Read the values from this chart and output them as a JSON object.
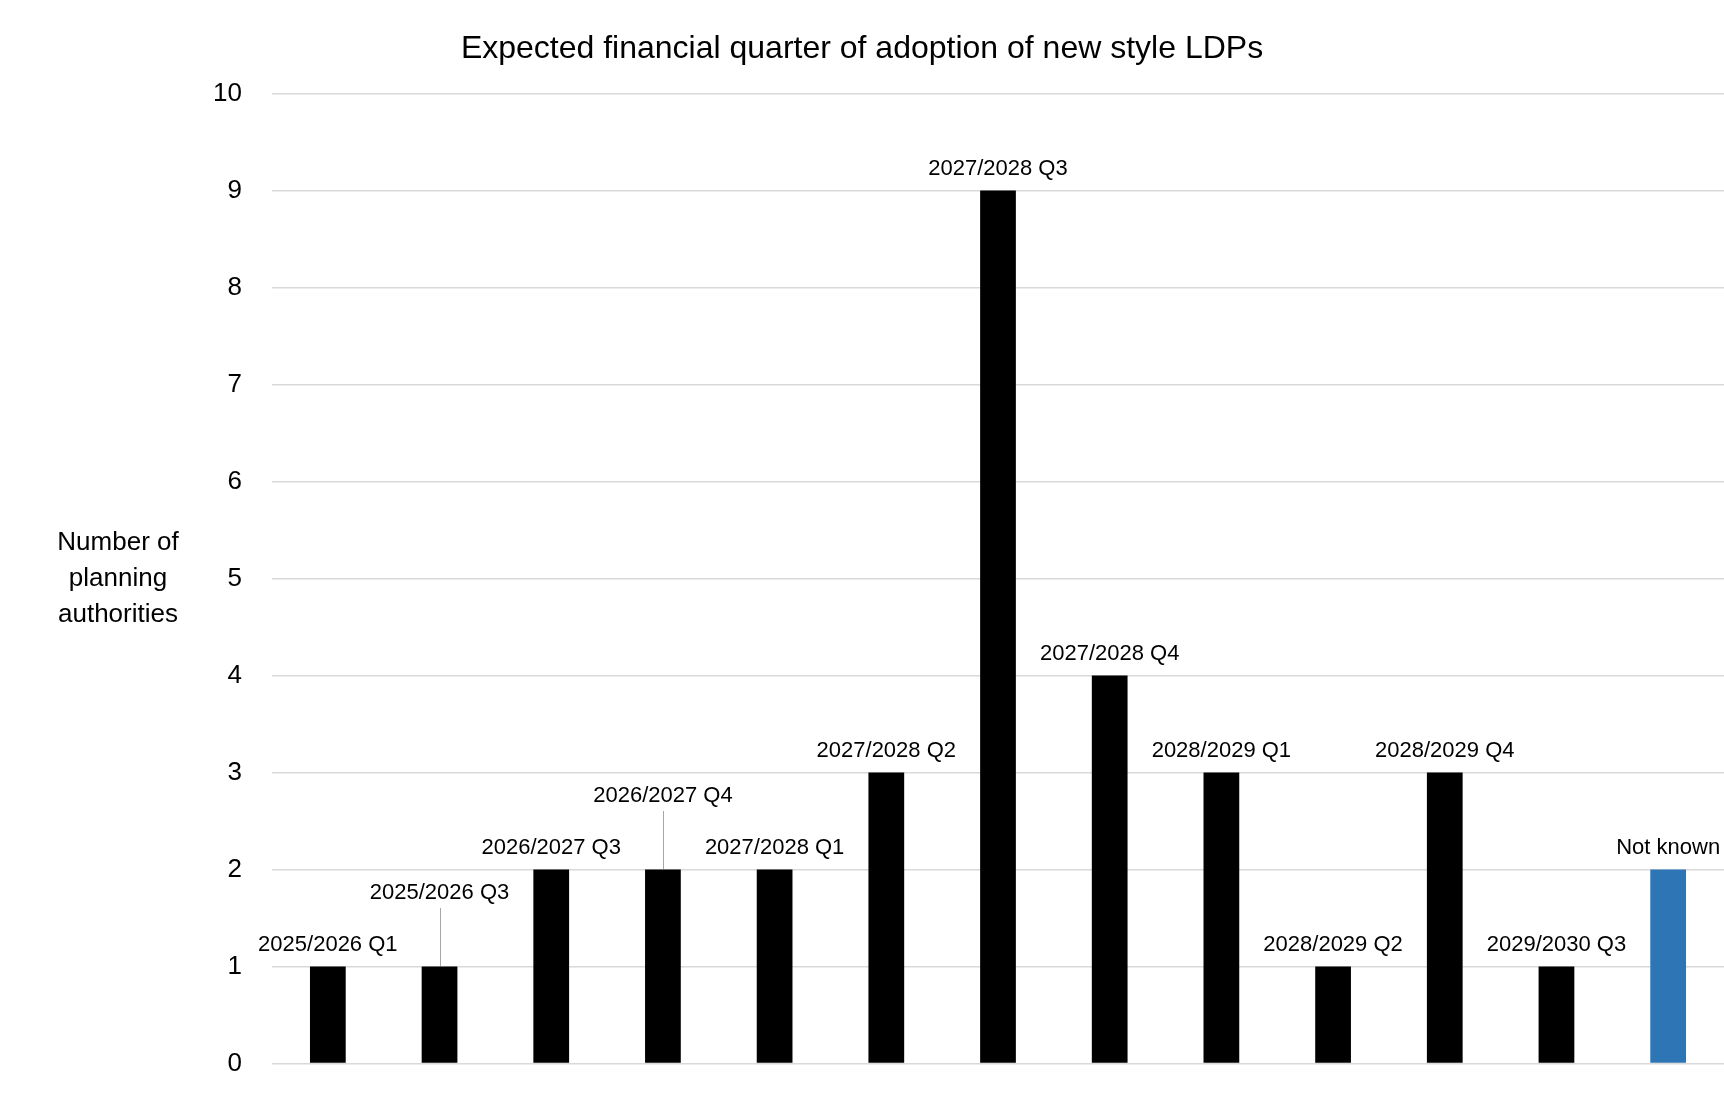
{
  "chart_data": {
    "type": "bar",
    "title": "Expected financial quarter of adoption of new style LDPs",
    "ylabel": "Number of planning authorities",
    "categories": [
      "2025/2026 Q1",
      "2025/2026 Q3",
      "2026/2027 Q3",
      "2026/2027 Q4",
      "2027/2028 Q1",
      "2027/2028 Q2",
      "2027/2028 Q3",
      "2027/2028 Q4",
      "2028/2029 Q1",
      "2028/2029 Q2",
      "2028/2029 Q4",
      "2029/2030 Q3",
      "Not known"
    ],
    "values": [
      1,
      1,
      2,
      2,
      2,
      3,
      9,
      4,
      3,
      1,
      3,
      1,
      2
    ],
    "colors": [
      "#000000",
      "#000000",
      "#000000",
      "#000000",
      "#000000",
      "#000000",
      "#000000",
      "#000000",
      "#000000",
      "#000000",
      "#000000",
      "#000000",
      "#2e75b6"
    ],
    "ylim": [
      0,
      10
    ],
    "yticks": [
      0,
      1,
      2,
      3,
      4,
      5,
      6,
      7,
      8,
      9,
      10
    ],
    "grid": "y",
    "tick_labels": "y",
    "legend": false
  }
}
